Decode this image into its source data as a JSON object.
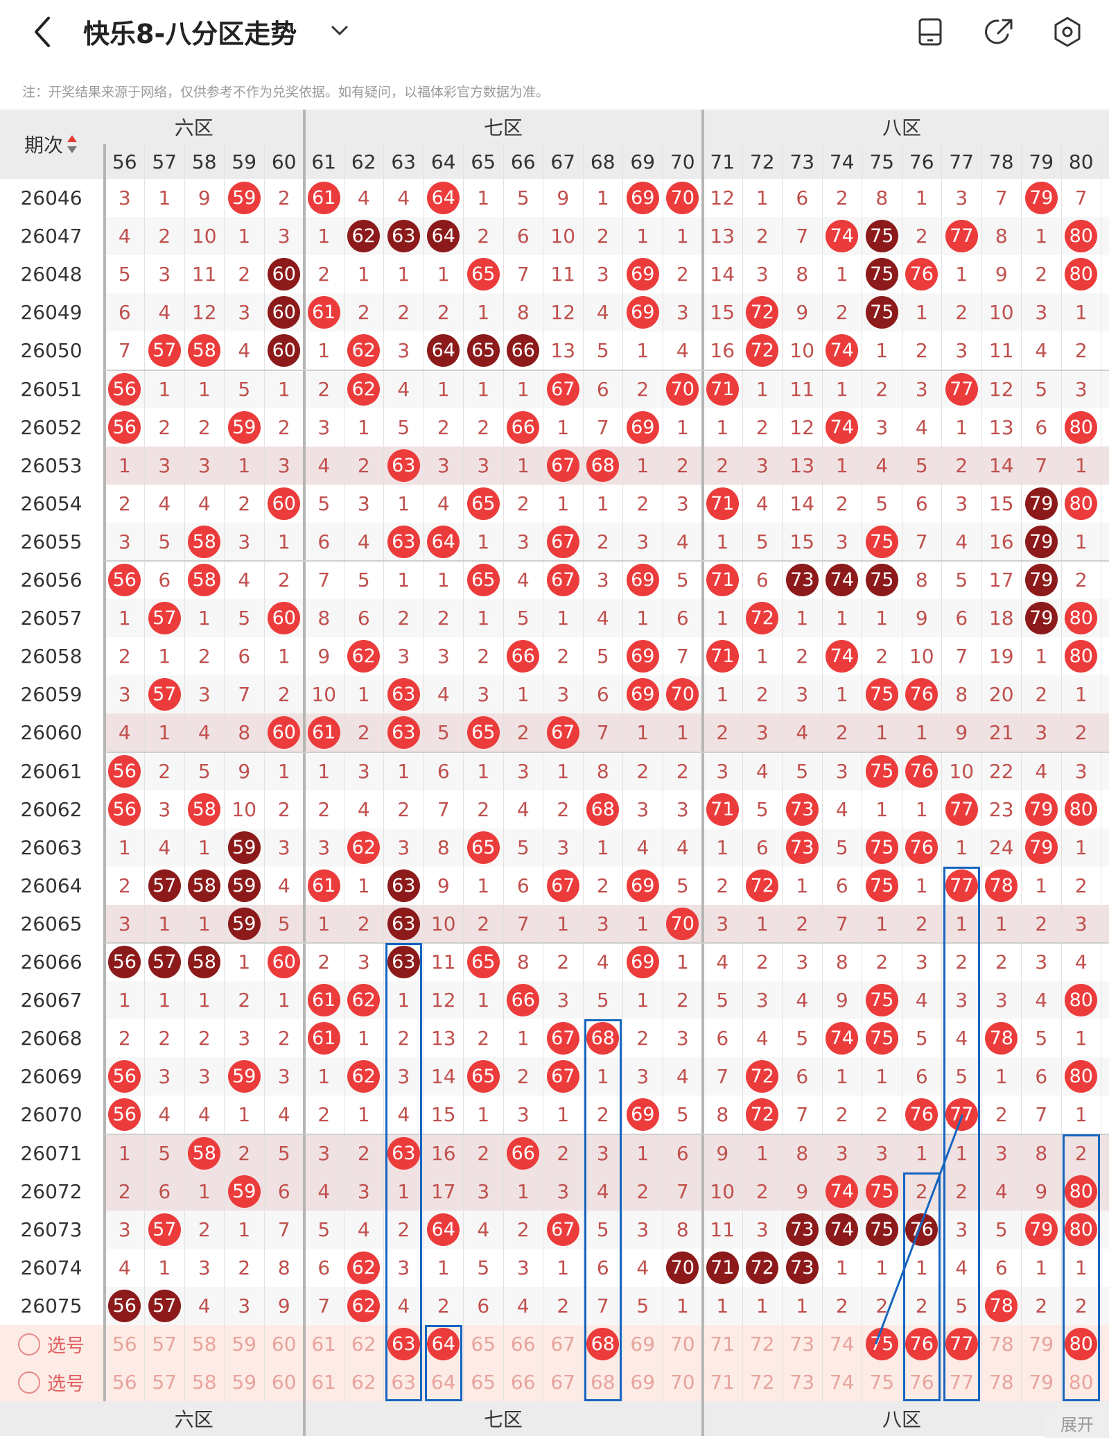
{
  "header": {
    "title": "快乐8-八分区走势",
    "note": "注：开奖结果来源于网络，仅供参考不作为兑奖依据。如有疑问，以福体彩官方数据为准。"
  },
  "table": {
    "issue_header": "期次",
    "zones_top": [
      "六区",
      "七区",
      "八区"
    ],
    "zones_bottom": [
      "六区",
      "七区",
      "八区"
    ],
    "columns": [
      56,
      57,
      58,
      59,
      60,
      61,
      62,
      63,
      64,
      65,
      66,
      67,
      68,
      69,
      70,
      71,
      72,
      73,
      74,
      75,
      76,
      77,
      78,
      79,
      80
    ],
    "select_label": "选号",
    "rows": [
      {
        "issue": "26046",
        "cells": [
          "3",
          "1",
          "9",
          "59",
          "2",
          "61",
          "4",
          "4",
          "64",
          "1",
          "5",
          "9",
          "1",
          "69",
          "70",
          "12",
          "1",
          "6",
          "2",
          "8",
          "1",
          "3",
          "7",
          "79",
          "7"
        ],
        "dark": []
      },
      {
        "issue": "26047",
        "cells": [
          "4",
          "2",
          "10",
          "1",
          "3",
          "1",
          "62",
          "63",
          "64",
          "2",
          "6",
          "10",
          "2",
          "1",
          "1",
          "13",
          "2",
          "7",
          "74",
          "75",
          "2",
          "77",
          "8",
          "1",
          "80"
        ],
        "dark": [
          "62",
          "63",
          "64",
          "75"
        ]
      },
      {
        "issue": "26048",
        "cells": [
          "5",
          "3",
          "11",
          "2",
          "60",
          "2",
          "1",
          "1",
          "1",
          "65",
          "7",
          "11",
          "3",
          "69",
          "2",
          "14",
          "3",
          "8",
          "1",
          "75",
          "76",
          "1",
          "9",
          "2",
          "80"
        ],
        "dark": [
          "60",
          "75"
        ]
      },
      {
        "issue": "26049",
        "cells": [
          "6",
          "4",
          "12",
          "3",
          "60",
          "61",
          "2",
          "2",
          "2",
          "1",
          "8",
          "12",
          "4",
          "69",
          "3",
          "15",
          "72",
          "9",
          "2",
          "75",
          "1",
          "2",
          "10",
          "3",
          "1"
        ],
        "dark": [
          "60",
          "75"
        ]
      },
      {
        "issue": "26050",
        "cells": [
          "7",
          "57",
          "58",
          "4",
          "60",
          "1",
          "62",
          "3",
          "64",
          "65",
          "66",
          "13",
          "5",
          "1",
          "4",
          "16",
          "72",
          "10",
          "74",
          "1",
          "2",
          "3",
          "11",
          "4",
          "2"
        ],
        "dark": [
          "60",
          "64",
          "65",
          "66"
        ]
      },
      {
        "issue": "26051",
        "cells": [
          "56",
          "1",
          "1",
          "5",
          "1",
          "2",
          "62",
          "4",
          "1",
          "1",
          "1",
          "67",
          "6",
          "2",
          "70",
          "71",
          "1",
          "11",
          "1",
          "2",
          "3",
          "77",
          "12",
          "5",
          "3"
        ],
        "dark": []
      },
      {
        "issue": "26052",
        "cells": [
          "56",
          "2",
          "2",
          "59",
          "2",
          "3",
          "1",
          "5",
          "2",
          "2",
          "66",
          "1",
          "7",
          "69",
          "1",
          "1",
          "2",
          "12",
          "74",
          "3",
          "4",
          "1",
          "13",
          "6",
          "80"
        ],
        "dark": []
      },
      {
        "issue": "26053",
        "cells": [
          "1",
          "3",
          "3",
          "1",
          "3",
          "4",
          "2",
          "63",
          "3",
          "3",
          "1",
          "67",
          "68",
          "1",
          "2",
          "2",
          "3",
          "13",
          "1",
          "4",
          "5",
          "2",
          "14",
          "7",
          "1"
        ],
        "dark": []
      },
      {
        "issue": "26054",
        "cells": [
          "2",
          "4",
          "4",
          "2",
          "60",
          "5",
          "3",
          "1",
          "4",
          "65",
          "2",
          "1",
          "1",
          "2",
          "3",
          "71",
          "4",
          "14",
          "2",
          "5",
          "6",
          "3",
          "15",
          "79",
          "80"
        ],
        "dark": [
          "79"
        ]
      },
      {
        "issue": "26055",
        "cells": [
          "3",
          "5",
          "58",
          "3",
          "1",
          "6",
          "4",
          "63",
          "64",
          "1",
          "3",
          "67",
          "2",
          "3",
          "4",
          "1",
          "5",
          "15",
          "3",
          "75",
          "7",
          "4",
          "16",
          "79",
          "1"
        ],
        "dark": [
          "79"
        ]
      },
      {
        "issue": "26056",
        "cells": [
          "56",
          "6",
          "58",
          "4",
          "2",
          "7",
          "5",
          "1",
          "1",
          "65",
          "4",
          "67",
          "3",
          "69",
          "5",
          "71",
          "6",
          "73",
          "74",
          "75",
          "8",
          "5",
          "17",
          "79",
          "2"
        ],
        "dark": [
          "73",
          "74",
          "75",
          "79"
        ]
      },
      {
        "issue": "26057",
        "cells": [
          "1",
          "57",
          "1",
          "5",
          "60",
          "8",
          "6",
          "2",
          "2",
          "1",
          "5",
          "1",
          "4",
          "1",
          "6",
          "1",
          "72",
          "1",
          "1",
          "1",
          "9",
          "6",
          "18",
          "79",
          "80"
        ],
        "dark": [
          "79"
        ]
      },
      {
        "issue": "26058",
        "cells": [
          "2",
          "1",
          "2",
          "6",
          "1",
          "9",
          "62",
          "3",
          "3",
          "2",
          "66",
          "2",
          "5",
          "69",
          "7",
          "71",
          "1",
          "2",
          "74",
          "2",
          "10",
          "7",
          "19",
          "1",
          "80"
        ],
        "dark": []
      },
      {
        "issue": "26059",
        "cells": [
          "3",
          "57",
          "3",
          "7",
          "2",
          "10",
          "1",
          "63",
          "4",
          "3",
          "1",
          "3",
          "6",
          "69",
          "70",
          "1",
          "2",
          "3",
          "1",
          "75",
          "76",
          "8",
          "20",
          "2",
          "1"
        ],
        "dark": []
      },
      {
        "issue": "26060",
        "cells": [
          "4",
          "1",
          "4",
          "8",
          "60",
          "61",
          "2",
          "63",
          "5",
          "65",
          "2",
          "67",
          "7",
          "1",
          "1",
          "2",
          "3",
          "4",
          "2",
          "1",
          "1",
          "9",
          "21",
          "3",
          "2"
        ],
        "dark": []
      },
      {
        "issue": "26061",
        "cells": [
          "56",
          "2",
          "5",
          "9",
          "1",
          "1",
          "3",
          "1",
          "6",
          "1",
          "3",
          "1",
          "8",
          "2",
          "2",
          "3",
          "4",
          "5",
          "3",
          "75",
          "76",
          "10",
          "22",
          "4",
          "3"
        ],
        "dark": []
      },
      {
        "issue": "26062",
        "cells": [
          "56",
          "3",
          "58",
          "10",
          "2",
          "2",
          "4",
          "2",
          "7",
          "2",
          "4",
          "2",
          "68",
          "3",
          "3",
          "71",
          "5",
          "73",
          "4",
          "1",
          "1",
          "77",
          "23",
          "79",
          "80"
        ],
        "dark": []
      },
      {
        "issue": "26063",
        "cells": [
          "1",
          "4",
          "1",
          "59",
          "3",
          "3",
          "62",
          "3",
          "8",
          "65",
          "5",
          "3",
          "1",
          "4",
          "4",
          "1",
          "6",
          "73",
          "5",
          "75",
          "76",
          "1",
          "24",
          "79",
          "1"
        ],
        "dark": [
          "59"
        ]
      },
      {
        "issue": "26064",
        "cells": [
          "2",
          "57",
          "58",
          "59",
          "4",
          "61",
          "1",
          "63",
          "9",
          "1",
          "6",
          "67",
          "2",
          "69",
          "5",
          "2",
          "72",
          "1",
          "6",
          "75",
          "1",
          "77",
          "78",
          "1",
          "2"
        ],
        "dark": [
          "57",
          "58",
          "59",
          "63"
        ]
      },
      {
        "issue": "26065",
        "cells": [
          "3",
          "1",
          "1",
          "59",
          "5",
          "1",
          "2",
          "63",
          "10",
          "2",
          "7",
          "1",
          "3",
          "1",
          "70",
          "3",
          "1",
          "2",
          "7",
          "1",
          "2",
          "1",
          "1",
          "2",
          "3"
        ],
        "dark": [
          "59",
          "63"
        ]
      },
      {
        "issue": "26066",
        "cells": [
          "56",
          "57",
          "58",
          "1",
          "60",
          "2",
          "3",
          "63",
          "11",
          "65",
          "8",
          "2",
          "4",
          "69",
          "1",
          "4",
          "2",
          "3",
          "8",
          "2",
          "3",
          "2",
          "2",
          "3",
          "4"
        ],
        "dark": [
          "56",
          "57",
          "58",
          "63"
        ]
      },
      {
        "issue": "26067",
        "cells": [
          "1",
          "1",
          "1",
          "2",
          "1",
          "61",
          "62",
          "1",
          "12",
          "1",
          "66",
          "3",
          "5",
          "1",
          "2",
          "5",
          "3",
          "4",
          "9",
          "75",
          "4",
          "3",
          "3",
          "4",
          "80"
        ],
        "dark": []
      },
      {
        "issue": "26068",
        "cells": [
          "2",
          "2",
          "2",
          "3",
          "2",
          "61",
          "1",
          "2",
          "13",
          "2",
          "1",
          "67",
          "68",
          "2",
          "3",
          "6",
          "4",
          "5",
          "74",
          "75",
          "5",
          "4",
          "78",
          "5",
          "1"
        ],
        "dark": []
      },
      {
        "issue": "26069",
        "cells": [
          "56",
          "3",
          "3",
          "59",
          "3",
          "1",
          "62",
          "3",
          "14",
          "65",
          "2",
          "67",
          "1",
          "3",
          "4",
          "7",
          "72",
          "6",
          "1",
          "1",
          "6",
          "5",
          "1",
          "6",
          "80"
        ],
        "dark": []
      },
      {
        "issue": "26070",
        "cells": [
          "56",
          "4",
          "4",
          "1",
          "4",
          "2",
          "1",
          "4",
          "15",
          "1",
          "3",
          "1",
          "2",
          "69",
          "5",
          "8",
          "72",
          "7",
          "2",
          "2",
          "76",
          "77",
          "2",
          "7",
          "1"
        ],
        "dark": []
      },
      {
        "issue": "26071",
        "cells": [
          "1",
          "5",
          "58",
          "2",
          "5",
          "3",
          "2",
          "63",
          "16",
          "2",
          "66",
          "2",
          "3",
          "1",
          "6",
          "9",
          "1",
          "8",
          "3",
          "3",
          "1",
          "1",
          "3",
          "8",
          "2"
        ],
        "dark": []
      },
      {
        "issue": "26072",
        "cells": [
          "2",
          "6",
          "1",
          "59",
          "6",
          "4",
          "3",
          "1",
          "17",
          "3",
          "1",
          "3",
          "4",
          "2",
          "7",
          "10",
          "2",
          "9",
          "74",
          "75",
          "2",
          "2",
          "4",
          "9",
          "80"
        ],
        "dark": []
      },
      {
        "issue": "26073",
        "cells": [
          "3",
          "57",
          "2",
          "1",
          "7",
          "5",
          "4",
          "2",
          "64",
          "4",
          "2",
          "67",
          "5",
          "3",
          "8",
          "11",
          "3",
          "73",
          "74",
          "75",
          "76",
          "3",
          "5",
          "79",
          "80"
        ],
        "dark": [
          "73",
          "74",
          "75",
          "76"
        ]
      },
      {
        "issue": "26074",
        "cells": [
          "4",
          "1",
          "3",
          "2",
          "8",
          "6",
          "62",
          "3",
          "1",
          "5",
          "3",
          "1",
          "6",
          "4",
          "70",
          "71",
          "72",
          "73",
          "1",
          "1",
          "1",
          "4",
          "6",
          "1",
          "1"
        ],
        "dark": [
          "70",
          "71",
          "72",
          "73"
        ]
      },
      {
        "issue": "26075",
        "cells": [
          "56",
          "57",
          "4",
          "3",
          "9",
          "7",
          "62",
          "4",
          "2",
          "6",
          "4",
          "2",
          "7",
          "5",
          "1",
          "1",
          "1",
          "1",
          "2",
          "2",
          "2",
          "5",
          "78",
          "2",
          "2"
        ],
        "dark": [
          "56",
          "57"
        ]
      }
    ],
    "select_rows": [
      {
        "marked": [
          "63",
          "64",
          "68",
          "75",
          "76",
          "77",
          "80"
        ]
      },
      {
        "marked": []
      }
    ]
  },
  "footer": {
    "expand_label": "展开"
  },
  "colors": {
    "hit": "#ec3b3b",
    "dark": "#8c1a1a",
    "miss_text": "#c0504d",
    "highlight_box": "#1565c0"
  }
}
